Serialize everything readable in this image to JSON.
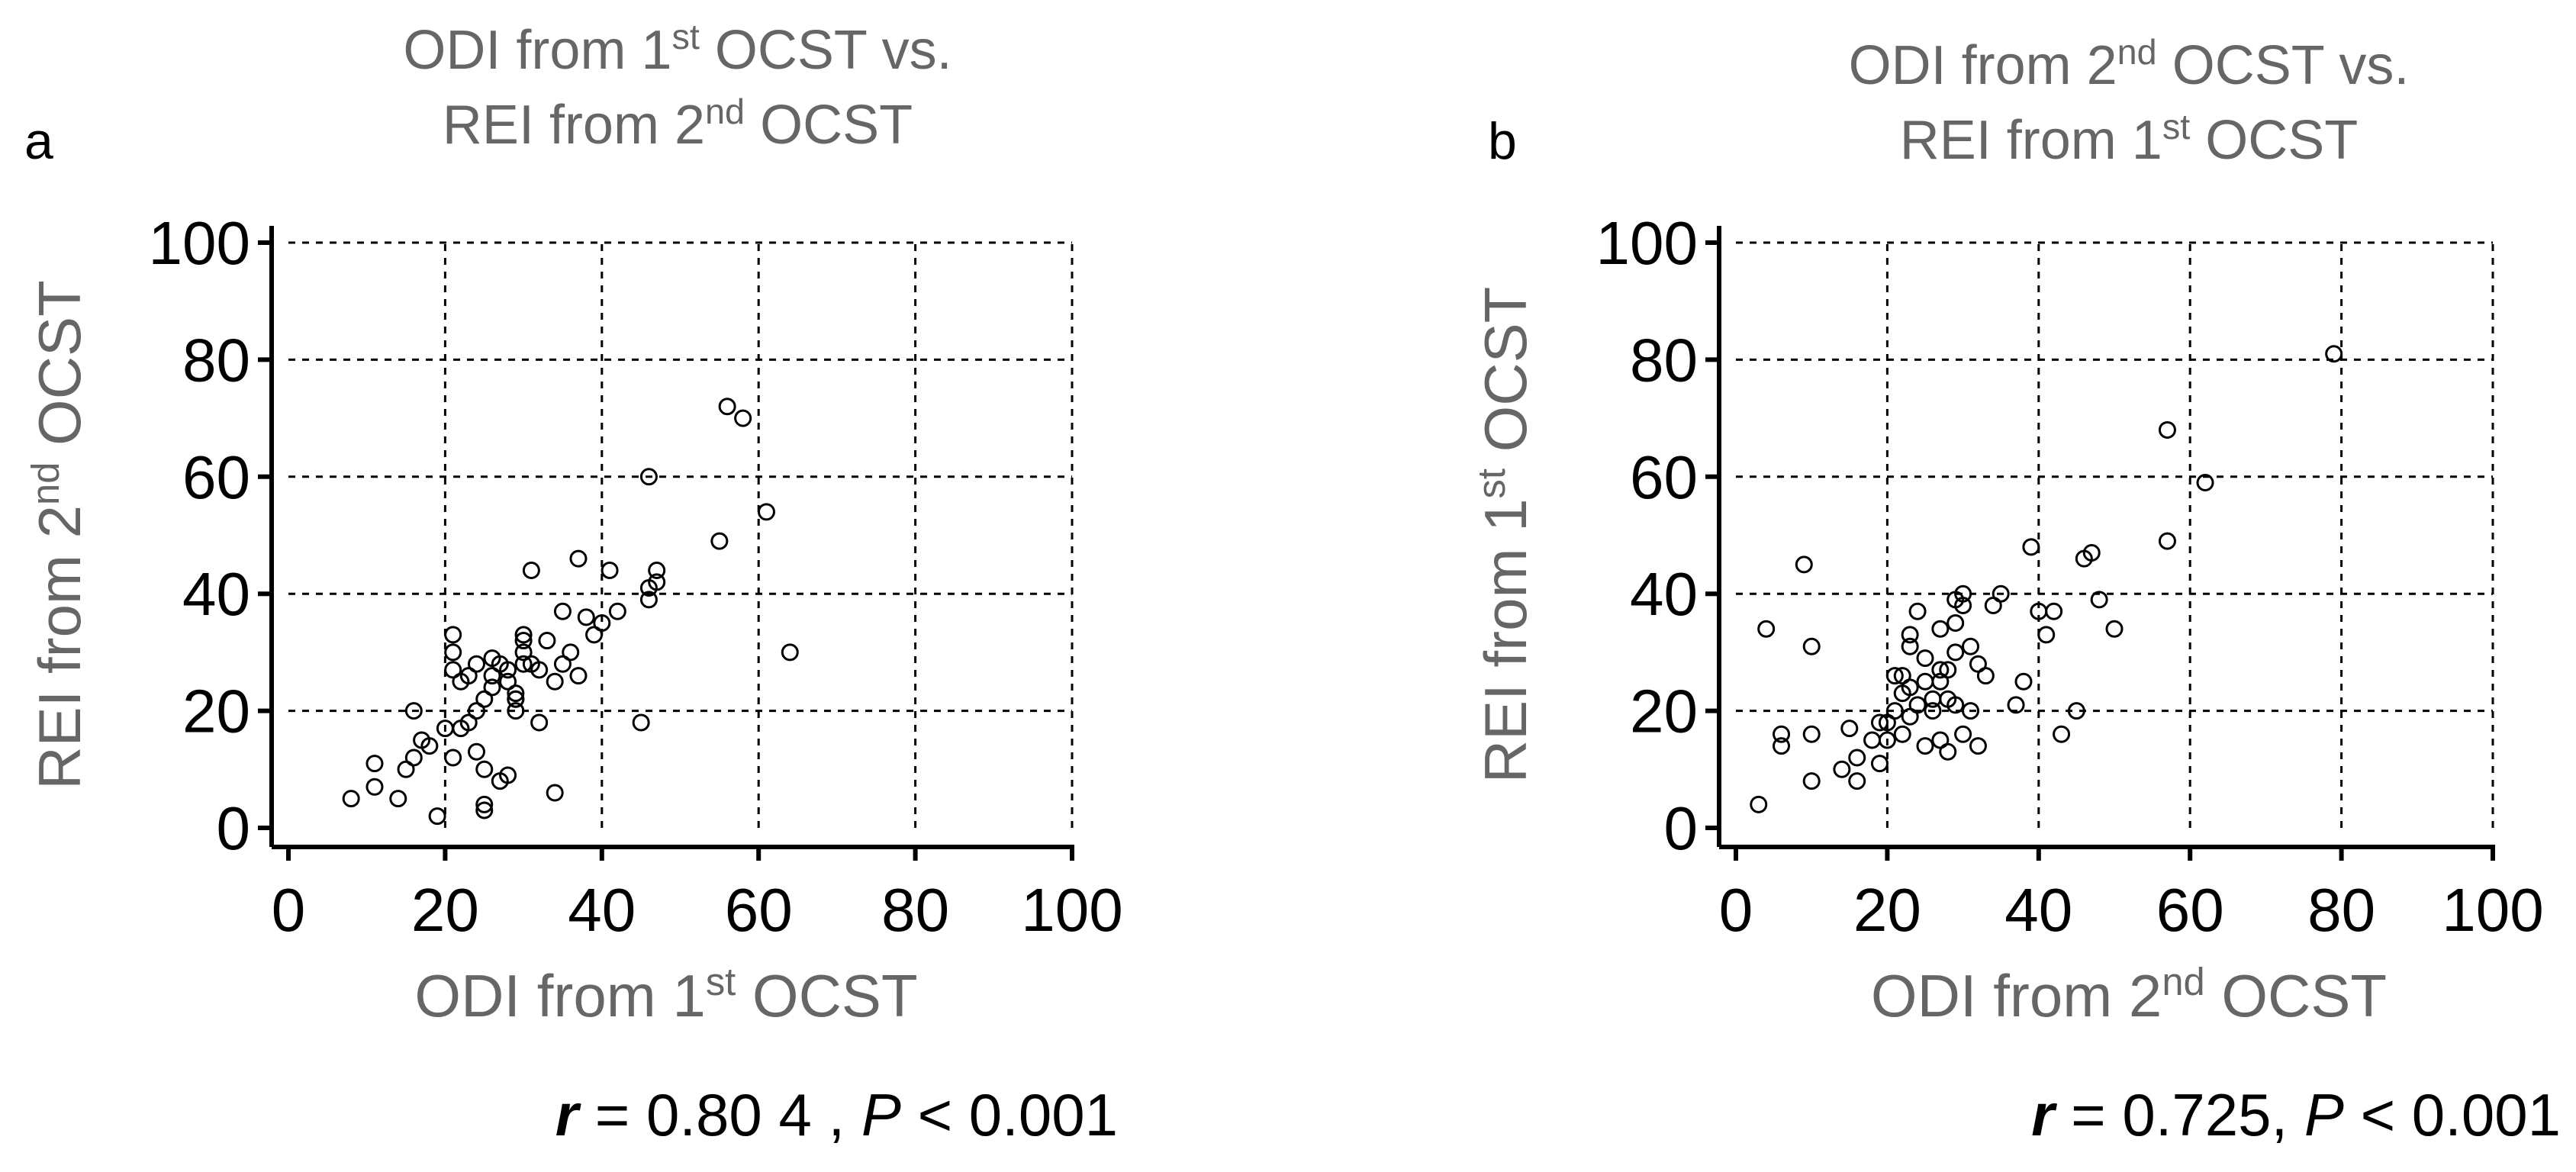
{
  "chart_data": [
    {
      "type": "scatter",
      "panel_label": "a",
      "title_line1": "ODI from 1st OCST vs.",
      "title_line2": "REI from 2nd OCST",
      "xlabel": "ODI from 1st OCST",
      "ylabel": "REI from 2nd OCST",
      "xlim": [
        0,
        100
      ],
      "ylim": [
        0,
        100
      ],
      "xticks": [
        "0",
        "20",
        "40",
        "60",
        "80",
        "100"
      ],
      "yticks": [
        "0",
        "20",
        "40",
        "60",
        "80",
        "100"
      ],
      "grid": true,
      "stat": {
        "r_label": "r",
        "r_text": " = 0.80 4 , ",
        "p_label": "P",
        "p_text": " < 0.001"
      },
      "x": [
        8,
        11,
        14,
        15,
        16,
        17,
        18,
        19,
        11,
        16,
        20,
        21,
        21,
        22,
        23,
        24,
        25,
        25,
        25,
        24,
        21,
        21,
        22,
        23,
        24,
        25,
        26,
        26,
        27,
        28,
        28,
        29,
        29,
        29,
        30,
        30,
        31,
        30,
        31,
        32,
        33,
        34,
        34,
        35,
        36,
        37,
        37,
        38,
        39,
        40,
        41,
        42,
        32,
        30,
        28,
        27,
        26,
        29,
        35,
        45,
        46,
        46,
        47,
        47,
        46,
        55,
        56,
        58,
        61,
        64
      ],
      "y": [
        5,
        11,
        5,
        10,
        12,
        15,
        14,
        2,
        7,
        20,
        17,
        12,
        27,
        25,
        26,
        28,
        4,
        3,
        10,
        13,
        30,
        33,
        17,
        18,
        20,
        22,
        24,
        26,
        28,
        27,
        25,
        20,
        22,
        23,
        30,
        33,
        28,
        32,
        44,
        18,
        32,
        6,
        25,
        37,
        30,
        26,
        46,
        36,
        33,
        35,
        44,
        37,
        27,
        28,
        9,
        8,
        29,
        22,
        28,
        18,
        60,
        41,
        44,
        42,
        39,
        49,
        72,
        70,
        54,
        30
      ]
    },
    {
      "type": "scatter",
      "panel_label": "b",
      "title_line1": "ODI from 2nd OCST vs.",
      "title_line2": "REI from 1st  OCST",
      "xlabel": "ODI from 2nd OCST",
      "ylabel": "REI from 1st OCST",
      "xlim": [
        0,
        100
      ],
      "ylim": [
        0,
        100
      ],
      "xticks": [
        "0",
        "20",
        "40",
        "60",
        "80",
        "100"
      ],
      "yticks": [
        "0",
        "20",
        "40",
        "60",
        "80",
        "100"
      ],
      "grid": true,
      "stat": {
        "r_label": "r",
        "r_text": " = 0.725, ",
        "p_label": "P",
        "p_text": " < 0.001"
      },
      "x": [
        3,
        4,
        6,
        6,
        9,
        10,
        10,
        10,
        14,
        15,
        16,
        16,
        18,
        19,
        19,
        20,
        21,
        21,
        22,
        22,
        23,
        23,
        23,
        23,
        24,
        24,
        25,
        25,
        26,
        27,
        27,
        27,
        27,
        28,
        28,
        28,
        29,
        29,
        29,
        29,
        30,
        30,
        30,
        31,
        31,
        32,
        32,
        33,
        34,
        35,
        37,
        38,
        39,
        40,
        41,
        42,
        43,
        45,
        46,
        47,
        48,
        50,
        57,
        57,
        62,
        79,
        22,
        25,
        20,
        26
      ],
      "y": [
        4,
        34,
        14,
        16,
        45,
        31,
        16,
        8,
        10,
        17,
        8,
        12,
        15,
        18,
        11,
        15,
        20,
        26,
        23,
        16,
        19,
        24,
        31,
        33,
        21,
        37,
        29,
        14,
        20,
        25,
        27,
        34,
        15,
        22,
        13,
        27,
        21,
        30,
        35,
        39,
        40,
        38,
        16,
        31,
        20,
        28,
        14,
        26,
        38,
        40,
        21,
        25,
        48,
        37,
        33,
        37,
        16,
        20,
        46,
        47,
        39,
        34,
        68,
        49,
        59,
        81,
        26,
        25,
        18,
        22
      ]
    }
  ]
}
